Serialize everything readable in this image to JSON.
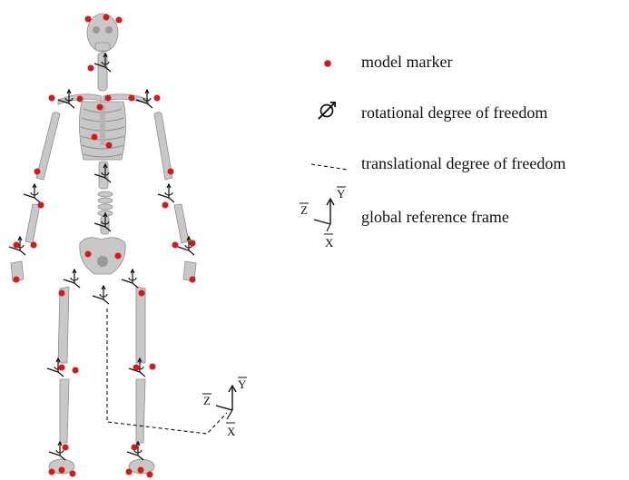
{
  "colors": {
    "bone": "#c8c8c8",
    "bone_edge": "#8e8e8e",
    "marker": "#e01414",
    "ink": "#111111",
    "background": "#ffffff"
  },
  "legend": {
    "marker_label": "model marker",
    "rotational_label": "rotational degree of freedom",
    "translational_label": "translational degree of freedom",
    "frame_label": "global reference frame"
  },
  "axes": {
    "x": "X",
    "y": "Y",
    "z": "Z"
  },
  "icons": {
    "marker": "red-dot-icon",
    "rotation": "rotation-arrow-icon",
    "translation": "dashed-line-icon",
    "frame": "xyz-axes-icon"
  }
}
